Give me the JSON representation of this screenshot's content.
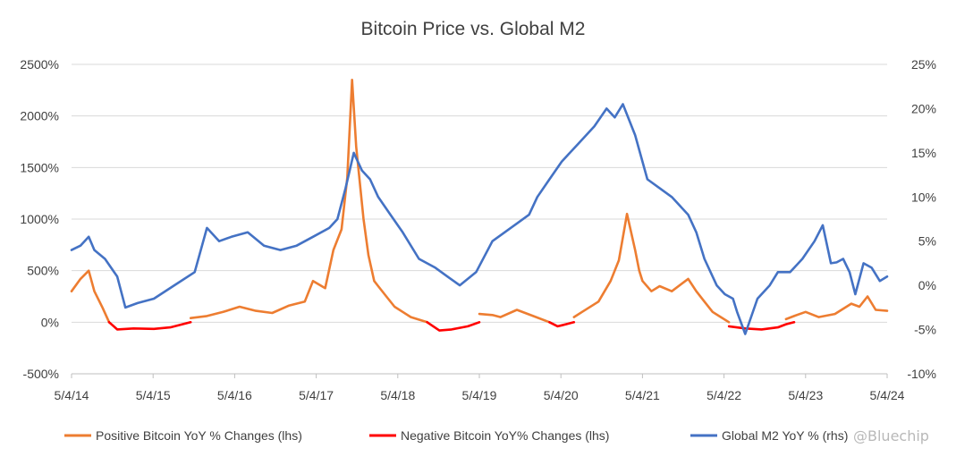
{
  "chart_data": {
    "type": "line",
    "title": "Bitcoin Price vs. Global M2",
    "xlabel": "",
    "ylabel": "",
    "x_ticks": [
      "5/4/14",
      "5/4/15",
      "5/4/16",
      "5/4/17",
      "5/4/18",
      "5/4/19",
      "5/4/20",
      "5/4/21",
      "5/4/22",
      "5/4/23",
      "5/4/24"
    ],
    "y_left_ticks": [
      "2500%",
      "2000%",
      "1500%",
      "1000%",
      "500%",
      "0%",
      "-500%"
    ],
    "y_right_ticks": [
      "25%",
      "20%",
      "15%",
      "10%",
      "5%",
      "0%",
      "-5%",
      "-10%"
    ],
    "ylim_left": [
      -500,
      2500
    ],
    "ylim_right": [
      -10,
      25
    ],
    "xlim": [
      2014.34,
      2024.34
    ],
    "grid": true,
    "legend_position": "bottom",
    "colors": {
      "positive": "#ed7d31",
      "negative": "#ff0000",
      "m2": "#4472c4",
      "grid": "#d9d9d9"
    },
    "series": [
      {
        "name": "Positive Bitcoin YoY % Changes (lhs)",
        "axis": "left",
        "x": [
          2014.34,
          2014.45,
          2014.55,
          2014.62,
          2014.72,
          2014.8,
          2014.9,
          2015.1,
          2015.35,
          2015.55,
          2015.8,
          2016.0,
          2016.2,
          2016.4,
          2016.6,
          2016.8,
          2017.0,
          2017.2,
          2017.3,
          2017.45,
          2017.55,
          2017.65,
          2017.72,
          2017.78,
          2017.83,
          2017.92,
          2017.98,
          2018.05,
          2018.1,
          2018.2,
          2018.3,
          2018.4,
          2018.5,
          2018.7,
          2018.85,
          2019.2,
          2019.34,
          2019.5,
          2019.6,
          2019.8,
          2020.0,
          2020.2,
          2020.35,
          2020.5,
          2020.6,
          2020.8,
          2020.95,
          2021.05,
          2021.15,
          2021.25,
          2021.3,
          2021.34,
          2021.45,
          2021.55,
          2021.7,
          2021.9,
          2022.0,
          2022.1,
          2022.2,
          2022.3,
          2022.4,
          2022.6,
          2022.8,
          2023.0,
          2023.1,
          2023.2,
          2023.34,
          2023.5,
          2023.7,
          2023.9,
          2024.0,
          2024.1,
          2024.2,
          2024.34
        ],
        "y": [
          300,
          420,
          500,
          300,
          140,
          0,
          null,
          null,
          null,
          null,
          40,
          60,
          100,
          150,
          110,
          90,
          160,
          200,
          400,
          330,
          700,
          900,
          1400,
          2350,
          1700,
          1000,
          650,
          400,
          350,
          250,
          150,
          100,
          50,
          0,
          null,
          null,
          80,
          70,
          50,
          120,
          60,
          0,
          null,
          50,
          100,
          200,
          400,
          600,
          1050,
          700,
          500,
          400,
          300,
          350,
          300,
          420,
          300,
          200,
          100,
          50,
          0,
          null,
          null,
          null,
          30,
          60,
          100,
          50,
          80,
          180,
          150,
          250,
          120,
          110
        ]
      },
      {
        "name": "Negative Bitcoin YoY% Changes (lhs)",
        "axis": "left",
        "x": [
          2014.8,
          2014.9,
          2015.1,
          2015.35,
          2015.55,
          2015.8,
          2016.0,
          2018.6,
          2018.7,
          2018.85,
          2019.0,
          2019.2,
          2019.34,
          2019.5,
          2020.1,
          2020.2,
          2020.3,
          2020.35,
          2020.5,
          2022.3,
          2022.4,
          2022.6,
          2022.8,
          2023.0,
          2023.1,
          2023.2
        ],
        "y": [
          0,
          -70,
          -60,
          -65,
          -50,
          0,
          null,
          null,
          0,
          -80,
          -70,
          -40,
          0,
          null,
          null,
          0,
          -40,
          -30,
          0,
          null,
          -40,
          -60,
          -70,
          -50,
          -20,
          0
        ]
      },
      {
        "name": "Global M2 YoY % (rhs)",
        "axis": "right",
        "x": [
          2014.34,
          2014.45,
          2014.55,
          2014.62,
          2014.75,
          2014.9,
          2015.0,
          2015.15,
          2015.35,
          2015.6,
          2015.85,
          2016.0,
          2016.15,
          2016.3,
          2016.5,
          2016.7,
          2016.9,
          2017.1,
          2017.3,
          2017.5,
          2017.6,
          2017.7,
          2017.8,
          2017.9,
          2018.0,
          2018.1,
          2018.25,
          2018.4,
          2018.6,
          2018.8,
          2018.95,
          2019.1,
          2019.3,
          2019.5,
          2019.65,
          2019.8,
          2019.95,
          2020.05,
          2020.2,
          2020.35,
          2020.55,
          2020.75,
          2020.9,
          2021.0,
          2021.1,
          2021.25,
          2021.4,
          2021.55,
          2021.7,
          2021.9,
          2022.0,
          2022.1,
          2022.25,
          2022.35,
          2022.45,
          2022.5,
          2022.6,
          2022.75,
          2022.9,
          2023.0,
          2023.15,
          2023.3,
          2023.45,
          2023.55,
          2023.65,
          2023.72,
          2023.8,
          2023.88,
          2023.95,
          2024.05,
          2024.15,
          2024.25,
          2024.34
        ],
        "y": [
          4,
          4.5,
          5.5,
          4,
          3,
          1,
          -2.5,
          -2,
          -1.5,
          0,
          1.5,
          6.5,
          5,
          5.5,
          6,
          4.5,
          4,
          4.5,
          5.5,
          6.5,
          7.5,
          11,
          15,
          13,
          12,
          10,
          8,
          6,
          3,
          2,
          1,
          0,
          1.5,
          5,
          6,
          7,
          8,
          10,
          12,
          14,
          16,
          18,
          20,
          19,
          20.5,
          17,
          12,
          11,
          10,
          8,
          6,
          3,
          0,
          -1,
          -1.5,
          -3,
          -5.5,
          -1.5,
          0,
          1.5,
          1.5,
          3,
          5,
          6.8,
          2.5,
          2.6,
          3,
          1.5,
          -1,
          2.5,
          2,
          0.5,
          1
        ]
      }
    ]
  },
  "watermark": "@Bluechip"
}
